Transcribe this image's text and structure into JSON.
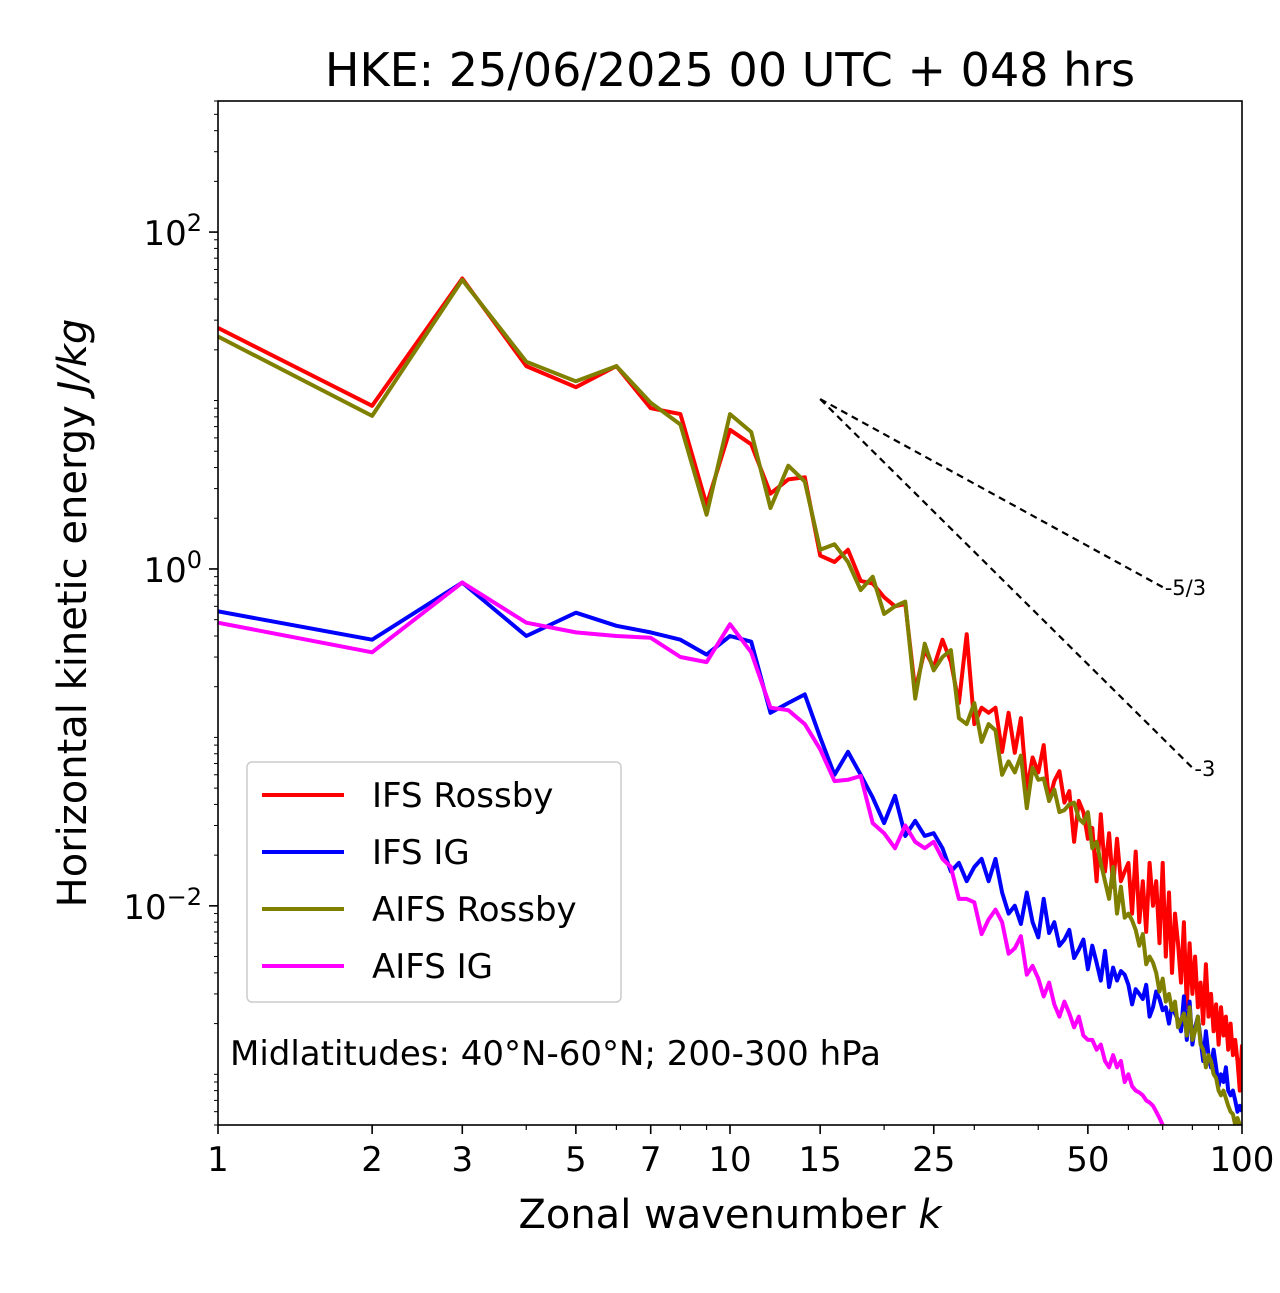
{
  "chart_data": {
    "type": "line",
    "title": "HKE: 25/06/2025 00 UTC + 048 hrs",
    "xlabel": "Zonal wavenumber",
    "xlabel_var": "k",
    "ylabel": "Horizontal kinetic energy",
    "ylabel_unit": "J/kg",
    "xscale": "log",
    "yscale": "log",
    "xlim": [
      1,
      100
    ],
    "ylim": [
      0.0005,
      600
    ],
    "xticks": [
      1,
      2,
      3,
      5,
      7,
      10,
      15,
      25,
      50,
      100
    ],
    "xtick_labels": [
      "1",
      "2",
      "3",
      "5",
      "7",
      "10",
      "15",
      "25",
      "50",
      "100"
    ],
    "yticks": [
      0.01,
      1,
      100
    ],
    "ytick_labels": [
      {
        "base": "10",
        "exp": "−2"
      },
      {
        "base": "10",
        "exp": "0"
      },
      {
        "base": "10",
        "exp": "2"
      }
    ],
    "legend_position": "lower-left",
    "annotation": "Midlatitudes: 40°N-60°N; 200-300 hPa",
    "reference_lines": [
      {
        "label": "-5/3",
        "x": [
          15,
          70
        ],
        "y": [
          10.2,
          0.78
        ]
      },
      {
        "label": "-3",
        "x": [
          15,
          80
        ],
        "y": [
          10.2,
          0.066
        ]
      }
    ],
    "series": [
      {
        "name": "IFS Rossby",
        "color": "#ff0000",
        "x": [
          1,
          2,
          3,
          4,
          5,
          6,
          7,
          8,
          9,
          10,
          11,
          12,
          13,
          14,
          15,
          16,
          17,
          18,
          19,
          20,
          21,
          22,
          23,
          24,
          25,
          26,
          27,
          28,
          29,
          30,
          31,
          32,
          33,
          34,
          35,
          36,
          37,
          38,
          39,
          40,
          41,
          42,
          43,
          44,
          45,
          46,
          47,
          48,
          49,
          50,
          51,
          52,
          53,
          54,
          55,
          56,
          57,
          58,
          59,
          60,
          61,
          62,
          63,
          64,
          65,
          66,
          67,
          68,
          69,
          70,
          71,
          72,
          73,
          74,
          75,
          76,
          77,
          78,
          79,
          80,
          81,
          82,
          83,
          84,
          85,
          86,
          87,
          88,
          89,
          90,
          91,
          92,
          93,
          94,
          95,
          96,
          97,
          98,
          99,
          100
        ],
        "y": [
          27,
          9.3,
          53,
          16,
          12,
          16,
          9,
          8.3,
          2.4,
          6.7,
          5.5,
          2.8,
          3.4,
          3.5,
          1.2,
          1.1,
          1.3,
          0.85,
          0.82,
          0.68,
          0.6,
          0.62,
          0.19,
          0.33,
          0.26,
          0.38,
          0.28,
          0.16,
          0.41,
          0.12,
          0.15,
          0.14,
          0.15,
          0.082,
          0.14,
          0.081,
          0.13,
          0.049,
          0.076,
          0.062,
          0.09,
          0.042,
          0.055,
          0.063,
          0.041,
          0.048,
          0.024,
          0.042,
          0.036,
          0.025,
          0.029,
          0.014,
          0.035,
          0.016,
          0.027,
          0.013,
          0.025,
          0.014,
          0.016,
          0.018,
          0.009,
          0.021,
          0.008,
          0.014,
          0.007,
          0.018,
          0.01,
          0.014,
          0.006,
          0.018,
          0.005,
          0.012,
          0.004,
          0.009,
          0.006,
          0.0035,
          0.008,
          0.0025,
          0.006,
          0.003,
          0.005,
          0.0025,
          0.0035,
          0.002,
          0.0045,
          0.0022,
          0.003,
          0.0018,
          0.0026,
          0.0015,
          0.0025,
          0.0017,
          0.0022,
          0.0014,
          0.002,
          0.0013,
          0.0016,
          0.0012,
          0.0008,
          0.0015
        ]
      },
      {
        "name": "IFS IG",
        "color": "#0000ff",
        "x": [
          1,
          2,
          3,
          4,
          5,
          6,
          7,
          8,
          9,
          10,
          11,
          12,
          13,
          14,
          15,
          16,
          17,
          18,
          19,
          20,
          21,
          22,
          23,
          24,
          25,
          26,
          27,
          28,
          29,
          30,
          31,
          32,
          33,
          34,
          35,
          36,
          37,
          38,
          39,
          40,
          41,
          42,
          43,
          44,
          45,
          46,
          47,
          48,
          49,
          50,
          51,
          52,
          53,
          54,
          55,
          56,
          57,
          58,
          59,
          60,
          61,
          62,
          63,
          64,
          65,
          66,
          67,
          68,
          69,
          70,
          71,
          72,
          73,
          74,
          75,
          76,
          77,
          78,
          79,
          80,
          81,
          82,
          83,
          84,
          85,
          86,
          87,
          88,
          89,
          90,
          91,
          92,
          93,
          94,
          95,
          96,
          97,
          98,
          99,
          100
        ],
        "y": [
          0.56,
          0.38,
          0.83,
          0.4,
          0.55,
          0.46,
          0.42,
          0.38,
          0.31,
          0.4,
          0.37,
          0.14,
          0.16,
          0.18,
          0.1,
          0.06,
          0.082,
          0.06,
          0.044,
          0.031,
          0.045,
          0.026,
          0.032,
          0.026,
          0.027,
          0.022,
          0.016,
          0.018,
          0.014,
          0.017,
          0.019,
          0.014,
          0.019,
          0.012,
          0.009,
          0.01,
          0.0078,
          0.012,
          0.008,
          0.0065,
          0.011,
          0.0069,
          0.008,
          0.0058,
          0.0063,
          0.0072,
          0.0049,
          0.0055,
          0.0063,
          0.0042,
          0.0058,
          0.0046,
          0.0036,
          0.0054,
          0.0033,
          0.0043,
          0.0036,
          0.0041,
          0.0039,
          0.0034,
          0.0026,
          0.0032,
          0.003,
          0.0028,
          0.0034,
          0.0022,
          0.0025,
          0.0031,
          0.0028,
          0.0024,
          0.0025,
          0.002,
          0.0026,
          0.0023,
          0.0021,
          0.0018,
          0.0029,
          0.0016,
          0.0027,
          0.0015,
          0.0019,
          0.0022,
          0.0016,
          0.0012,
          0.0018,
          0.0013,
          0.0011,
          0.0014,
          0.0011,
          0.00085,
          0.001,
          0.0009,
          0.0011,
          0.0008,
          0.00075,
          0.0008,
          0.0007,
          0.0006,
          0.00065,
          0.0006
        ]
      },
      {
        "name": "AIFS Rossby",
        "color": "#808000",
        "x": [
          1,
          2,
          3,
          4,
          5,
          6,
          7,
          8,
          9,
          10,
          11,
          12,
          13,
          14,
          15,
          16,
          17,
          18,
          19,
          20,
          21,
          22,
          23,
          24,
          25,
          26,
          27,
          28,
          29,
          30,
          31,
          32,
          33,
          34,
          35,
          36,
          37,
          38,
          39,
          40,
          41,
          42,
          43,
          44,
          45,
          46,
          47,
          48,
          49,
          50,
          51,
          52,
          53,
          54,
          55,
          56,
          57,
          58,
          59,
          60,
          61,
          62,
          63,
          64,
          65,
          66,
          67,
          68,
          69,
          70,
          71,
          72,
          73,
          74,
          75,
          76,
          77,
          78,
          79,
          80,
          81,
          82,
          83,
          84,
          85,
          86,
          87,
          88,
          89,
          90,
          91,
          92,
          93,
          94,
          95,
          96,
          97,
          98,
          99,
          100
        ],
        "y": [
          24,
          8.1,
          52,
          17,
          13,
          16,
          9.7,
          7.2,
          2.1,
          8.3,
          6.5,
          2.3,
          4.1,
          3.3,
          1.3,
          1.4,
          1.1,
          0.75,
          0.9,
          0.54,
          0.6,
          0.64,
          0.17,
          0.36,
          0.25,
          0.3,
          0.33,
          0.13,
          0.12,
          0.16,
          0.094,
          0.12,
          0.11,
          0.06,
          0.072,
          0.062,
          0.078,
          0.038,
          0.066,
          0.056,
          0.057,
          0.042,
          0.049,
          0.036,
          0.037,
          0.04,
          0.041,
          0.033,
          0.031,
          0.036,
          0.022,
          0.024,
          0.018,
          0.014,
          0.011,
          0.017,
          0.009,
          0.013,
          0.0085,
          0.009,
          0.0082,
          0.0072,
          0.0058,
          0.0068,
          0.0045,
          0.005,
          0.0046,
          0.004,
          0.0031,
          0.0037,
          0.0027,
          0.003,
          0.0024,
          0.0027,
          0.0019,
          0.0021,
          0.0023,
          0.0017,
          0.0025,
          0.0016,
          0.0018,
          0.0022,
          0.0015,
          0.0014,
          0.0011,
          0.0013,
          0.0012,
          0.001,
          0.00095,
          0.0008,
          0.00075,
          0.0008,
          0.00072,
          0.00065,
          0.0006,
          0.00058,
          0.0005,
          0.00055,
          0.0005,
          0.00048
        ]
      },
      {
        "name": "AIFS IG",
        "color": "#ff00ff",
        "x": [
          1,
          2,
          3,
          4,
          5,
          6,
          7,
          8,
          9,
          10,
          11,
          12,
          13,
          14,
          15,
          16,
          17,
          18,
          19,
          20,
          21,
          22,
          23,
          24,
          25,
          26,
          27,
          28,
          29,
          30,
          31,
          32,
          33,
          34,
          35,
          36,
          37,
          38,
          39,
          40,
          41,
          42,
          43,
          44,
          45,
          46,
          47,
          48,
          49,
          50,
          51,
          52,
          53,
          54,
          55,
          56,
          57,
          58,
          59,
          60,
          61,
          62,
          63,
          64,
          65,
          66,
          67,
          68,
          69,
          70
        ],
        "y": [
          0.48,
          0.32,
          0.83,
          0.48,
          0.42,
          0.4,
          0.39,
          0.3,
          0.28,
          0.47,
          0.32,
          0.15,
          0.145,
          0.12,
          0.085,
          0.055,
          0.056,
          0.059,
          0.031,
          0.027,
          0.022,
          0.03,
          0.024,
          0.022,
          0.024,
          0.019,
          0.017,
          0.011,
          0.011,
          0.0105,
          0.0068,
          0.0083,
          0.0095,
          0.008,
          0.0052,
          0.0056,
          0.0066,
          0.0039,
          0.0044,
          0.0037,
          0.0029,
          0.0035,
          0.0026,
          0.0022,
          0.0027,
          0.0023,
          0.0019,
          0.0022,
          0.0017,
          0.0016,
          0.0016,
          0.0014,
          0.0015,
          0.0012,
          0.0011,
          0.0013,
          0.0011,
          0.0012,
          0.0009,
          0.001,
          0.00085,
          0.0008,
          0.00078,
          0.00075,
          0.0007,
          0.00068,
          0.00065,
          0.0006,
          0.00055,
          0.0005
        ]
      }
    ]
  }
}
